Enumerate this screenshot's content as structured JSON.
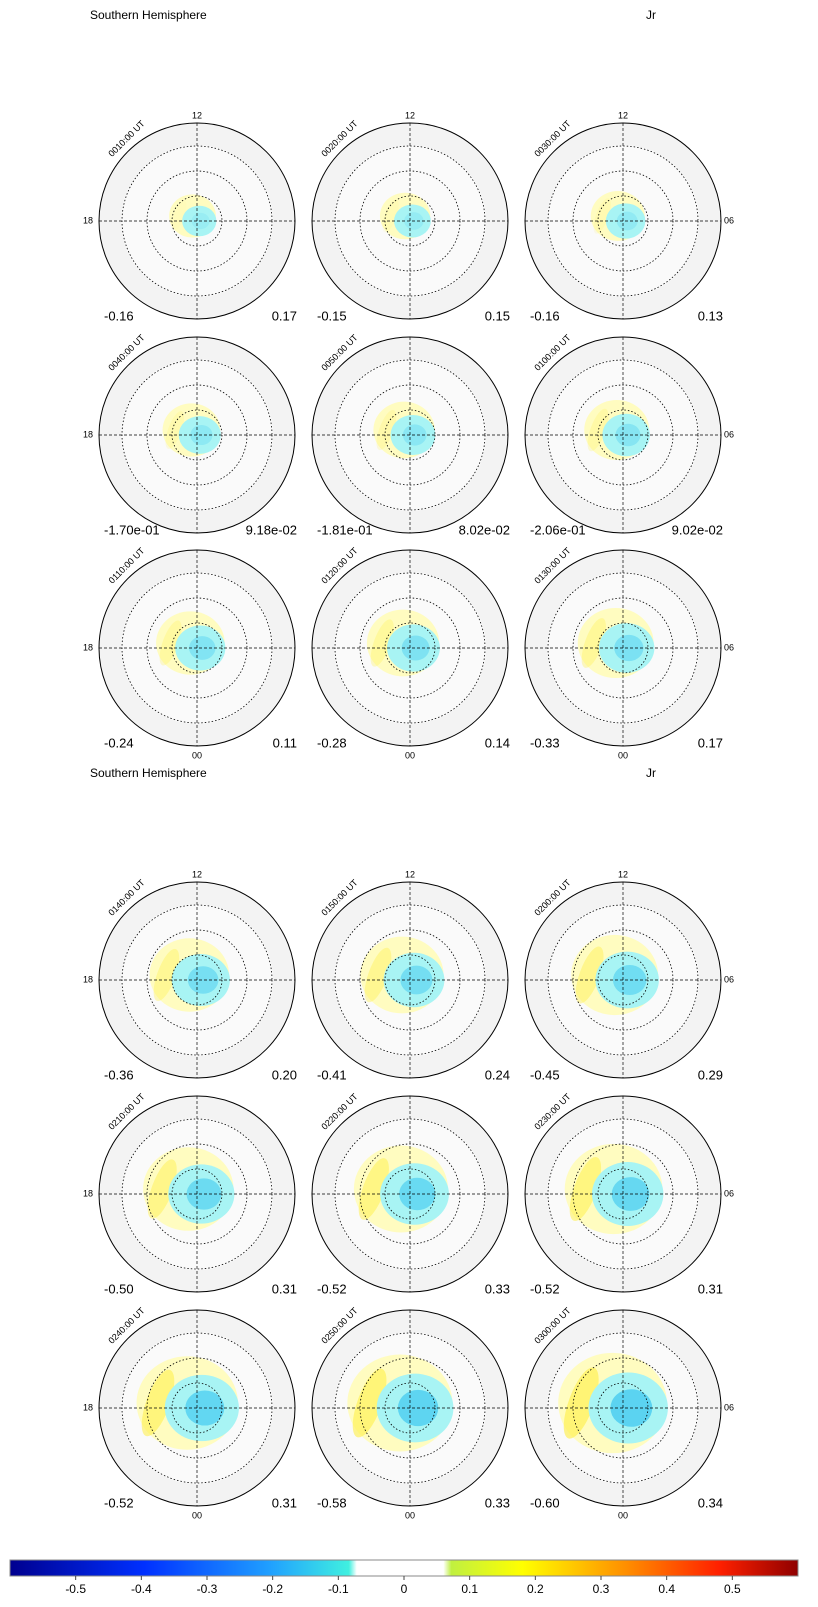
{
  "clock_labels": {
    "top": "12",
    "left": "18",
    "right": "06",
    "bottom": "00"
  },
  "sections": [
    {
      "title": "Southern Hemisphere",
      "quantity": "Jr",
      "panels": [
        {
          "time": "0010:00 UT",
          "min": "-0.16",
          "max": "0.17"
        },
        {
          "time": "0020:00 UT",
          "min": "-0.15",
          "max": "0.15"
        },
        {
          "time": "0030:00 UT",
          "min": "-0.16",
          "max": "0.13"
        },
        {
          "time": "0040:00 UT",
          "min": "-1.70e-01",
          "max": "9.18e-02"
        },
        {
          "time": "0050:00 UT",
          "min": "-1.81e-01",
          "max": "8.02e-02"
        },
        {
          "time": "0100:00 UT",
          "min": "-2.06e-01",
          "max": "9.02e-02"
        },
        {
          "time": "0110:00 UT",
          "min": "-0.24",
          "max": "0.11"
        },
        {
          "time": "0120:00 UT",
          "min": "-0.28",
          "max": "0.14"
        },
        {
          "time": "0130:00 UT",
          "min": "-0.33",
          "max": "0.17"
        }
      ]
    },
    {
      "title": "Southern Hemisphere",
      "quantity": "Jr",
      "panels": [
        {
          "time": "0140:00 UT",
          "min": "-0.36",
          "max": "0.20"
        },
        {
          "time": "0150:00 UT",
          "min": "-0.41",
          "max": "0.24"
        },
        {
          "time": "0200:00 UT",
          "min": "-0.45",
          "max": "0.29"
        },
        {
          "time": "0210:00 UT",
          "min": "-0.50",
          "max": "0.31"
        },
        {
          "time": "0220:00 UT",
          "min": "-0.52",
          "max": "0.33"
        },
        {
          "time": "0230:00 UT",
          "min": "-0.52",
          "max": "0.31"
        },
        {
          "time": "0240:00 UT",
          "min": "-0.52",
          "max": "0.31"
        },
        {
          "time": "0250:00 UT",
          "min": "-0.58",
          "max": "0.33"
        },
        {
          "time": "0300:00 UT",
          "min": "-0.60",
          "max": "0.34"
        }
      ]
    }
  ],
  "colorbar": {
    "lim": [
      -0.6,
      0.6
    ],
    "ticks": [
      -0.5,
      -0.4,
      -0.3,
      -0.2,
      -0.1,
      0,
      0.1,
      0.2,
      0.3,
      0.4,
      0.5
    ]
  }
}
